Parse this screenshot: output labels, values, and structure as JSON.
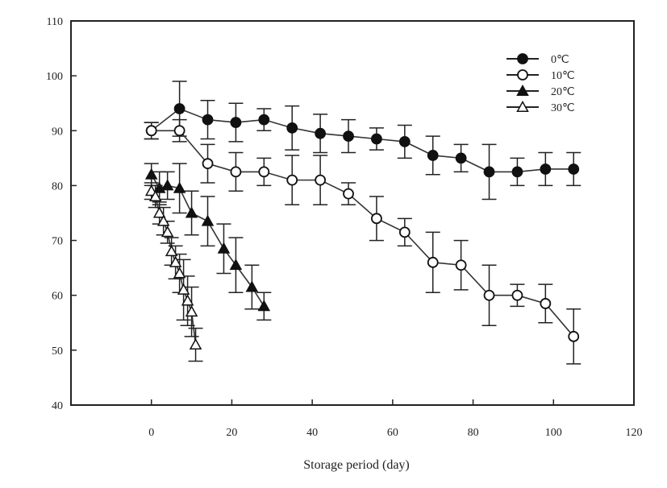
{
  "chart_data": {
    "type": "line",
    "title": "",
    "xlabel": "Storage period (day)",
    "ylabel": "",
    "xlim": [
      -20,
      120
    ],
    "ylim": [
      40,
      110
    ],
    "x_ticks": [
      0,
      20,
      40,
      60,
      80,
      100,
      120
    ],
    "x_tick_labels": [
      "0",
      "20",
      "40",
      "60",
      "80",
      "100",
      "120"
    ],
    "y_ticks": [
      40,
      50,
      60,
      70,
      80,
      90,
      100,
      110
    ],
    "y_tick_labels": [
      "40",
      "50",
      "60",
      "70",
      "80",
      "90",
      "100",
      "110"
    ],
    "grid": false,
    "legend_position": "top-right",
    "series": [
      {
        "name": "0℃",
        "marker": "circle-filled",
        "x": [
          0,
          7,
          14,
          21,
          28,
          35,
          42,
          49,
          56,
          63,
          70,
          77,
          84,
          91,
          98,
          105
        ],
        "y": [
          90,
          94,
          92,
          91.5,
          92,
          90.5,
          89.5,
          89,
          88.5,
          88,
          85.5,
          85,
          82.5,
          82.5,
          83,
          83
        ],
        "err": [
          1.5,
          5,
          3.5,
          3.5,
          2,
          4,
          3.5,
          3,
          2,
          3,
          3.5,
          2.5,
          5,
          2.5,
          3,
          3
        ]
      },
      {
        "name": "10℃",
        "marker": "circle-open",
        "x": [
          0,
          7,
          14,
          21,
          28,
          35,
          42,
          49,
          56,
          63,
          70,
          77,
          84,
          91,
          98,
          105
        ],
        "y": [
          90,
          90,
          84,
          82.5,
          82.5,
          81,
          81,
          78.5,
          74,
          71.5,
          66,
          65.5,
          60,
          60,
          58.5,
          52.5
        ],
        "err": [
          1.5,
          2,
          3.5,
          3.5,
          2.5,
          4.5,
          4.5,
          2,
          4,
          2.5,
          5.5,
          4.5,
          5.5,
          2,
          3.5,
          5
        ]
      },
      {
        "name": "20℃",
        "marker": "triangle-filled",
        "x": [
          0,
          2,
          4,
          7,
          10,
          14,
          18,
          21,
          25,
          28
        ],
        "y": [
          82,
          79.5,
          80,
          79.5,
          75,
          73.5,
          68.5,
          65.5,
          61.5,
          58
        ],
        "err": [
          2,
          3,
          2.5,
          4.5,
          4,
          4.5,
          4.5,
          5,
          4,
          2.5
        ]
      },
      {
        "name": "30℃",
        "marker": "triangle-open",
        "x": [
          0,
          1,
          2,
          3,
          4,
          5,
          6,
          7,
          8,
          9,
          10,
          11
        ],
        "y": [
          79,
          78,
          75,
          73.5,
          71.5,
          68,
          66,
          64,
          61,
          59,
          57,
          51
        ],
        "err": [
          1.5,
          2,
          2,
          2.5,
          2,
          2.5,
          3,
          3.5,
          5.5,
          4.5,
          4.5,
          3
        ]
      }
    ]
  }
}
